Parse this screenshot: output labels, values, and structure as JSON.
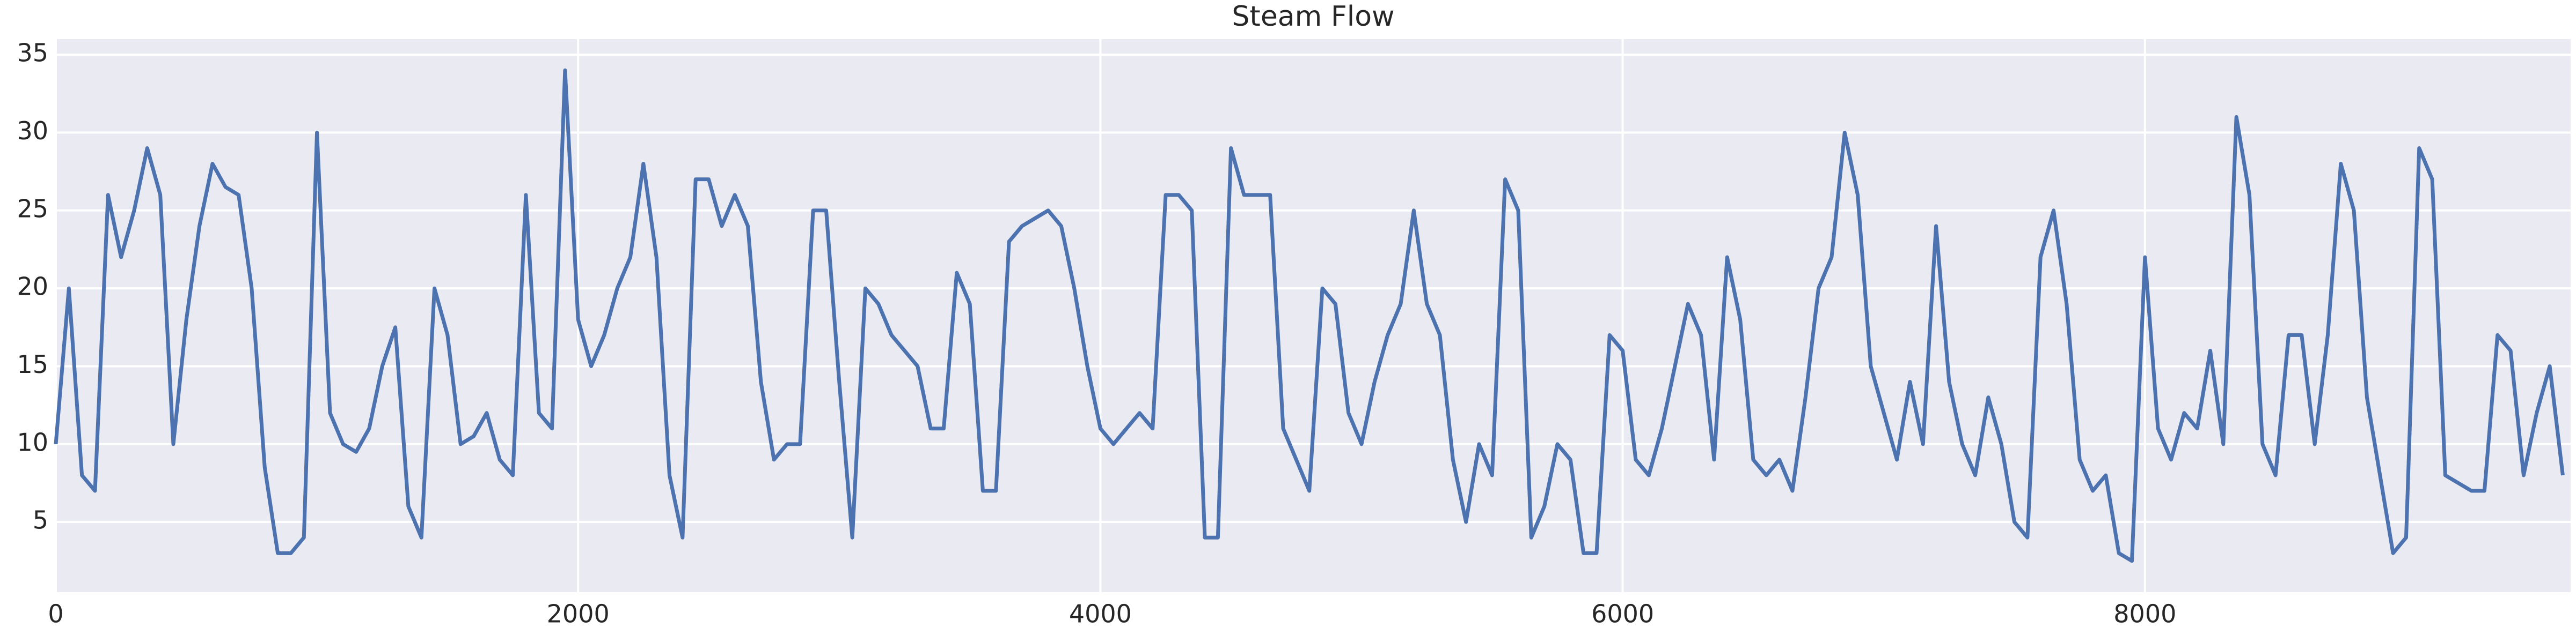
{
  "chart_data": {
    "type": "line",
    "title": "Steam Flow",
    "x": [
      0,
      50,
      100,
      150,
      200,
      250,
      300,
      350,
      400,
      450,
      500,
      550,
      600,
      650,
      700,
      750,
      800,
      850,
      900,
      950,
      1000,
      1050,
      1100,
      1150,
      1200,
      1250,
      1300,
      1350,
      1400,
      1450,
      1500,
      1550,
      1600,
      1650,
      1700,
      1750,
      1800,
      1850,
      1900,
      1950,
      2000,
      2050,
      2100,
      2150,
      2200,
      2250,
      2300,
      2350,
      2400,
      2450,
      2500,
      2550,
      2600,
      2650,
      2700,
      2750,
      2800,
      2850,
      2900,
      2950,
      3000,
      3050,
      3100,
      3150,
      3200,
      3250,
      3300,
      3350,
      3400,
      3450,
      3500,
      3550,
      3600,
      3650,
      3700,
      3750,
      3800,
      3850,
      3900,
      3950,
      4000,
      4050,
      4100,
      4150,
      4200,
      4250,
      4300,
      4350,
      4400,
      4450,
      4500,
      4550,
      4600,
      4650,
      4700,
      4750,
      4800,
      4850,
      4900,
      4950,
      5000,
      5050,
      5100,
      5150,
      5200,
      5250,
      5300,
      5350,
      5400,
      5450,
      5500,
      5550,
      5600,
      5650,
      5700,
      5750,
      5800,
      5850,
      5900,
      5950,
      6000,
      6050,
      6100,
      6150,
      6200,
      6250,
      6300,
      6350,
      6400,
      6450,
      6500,
      6550,
      6600,
      6650,
      6700,
      6750,
      6800,
      6850,
      6900,
      6950,
      7000,
      7050,
      7100,
      7150,
      7200,
      7250,
      7300,
      7350,
      7400,
      7450,
      7500,
      7550,
      7600,
      7650,
      7700,
      7750,
      7800,
      7850,
      7900,
      7950,
      8000,
      8050,
      8100,
      8150,
      8200,
      8250,
      8300,
      8350,
      8400,
      8450,
      8500,
      8550,
      8600,
      8650,
      8700,
      8750,
      8800,
      8850,
      8900,
      8950,
      9000,
      9050,
      9100,
      9150,
      9200,
      9250,
      9300,
      9350,
      9400,
      9450,
      9500,
      9550,
      9600
    ],
    "values": [
      10,
      20,
      8,
      7,
      26,
      22,
      25,
      29,
      26,
      10,
      18,
      24,
      28,
      26.5,
      26,
      20,
      8.5,
      3,
      3,
      4,
      30,
      12,
      10,
      9.5,
      11,
      15,
      17.5,
      6,
      4,
      20,
      17,
      10,
      10.5,
      12,
      9,
      8,
      26,
      12,
      11,
      34,
      18,
      15,
      17,
      20,
      22,
      28,
      22,
      8,
      4,
      27,
      27,
      24,
      26,
      24,
      14,
      9,
      10,
      10,
      25,
      25,
      14,
      4,
      20,
      19,
      17,
      16,
      15,
      11,
      11,
      21,
      19,
      7,
      7,
      23,
      24,
      24.5,
      25,
      24,
      20,
      15,
      11,
      10,
      11,
      12,
      11,
      26,
      26,
      25,
      4,
      4,
      29,
      26,
      26,
      26,
      11,
      9,
      7,
      20,
      19,
      12,
      10,
      14,
      17,
      19,
      25,
      19,
      17,
      9,
      5,
      10,
      8,
      27,
      25,
      4,
      6,
      10,
      9,
      3,
      3,
      17,
      16,
      9,
      8,
      11,
      15,
      19,
      17,
      9,
      22,
      18,
      9,
      8,
      9,
      7,
      13,
      20,
      22,
      30,
      26,
      15,
      12,
      9,
      14,
      10,
      24,
      14,
      10,
      8,
      13,
      10,
      5,
      4,
      22,
      25,
      19,
      9,
      7,
      8,
      3,
      2.5,
      22,
      11,
      9,
      12,
      11,
      16,
      10,
      31,
      26,
      10,
      8,
      17,
      17,
      10,
      17,
      28,
      25,
      13,
      8,
      3,
      4,
      29,
      27,
      8,
      7.5,
      7,
      7,
      17,
      16,
      8,
      12,
      15,
      8
    ],
    "color": "#4c72b0",
    "xlim": [
      0,
      9630
    ],
    "ylim": [
      0.5,
      36
    ],
    "xticks": [
      0,
      2000,
      4000,
      6000,
      8000
    ],
    "yticks": [
      5,
      10,
      15,
      20,
      25,
      30,
      35
    ],
    "grid": true
  }
}
